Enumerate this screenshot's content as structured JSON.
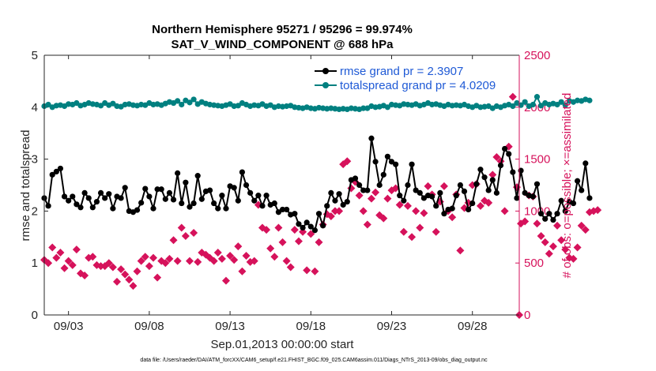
{
  "chart_data": {
    "type": "line",
    "title": "Northern Hemisphere 95271 / 95296 = 99.974%",
    "subtitle": "SAT_V_WIND_COMPONENT @ 688 hPa",
    "xlabel": "Sep.01,2013 00:00:00 start",
    "ylabel": "rmse and totalspread",
    "y2label": "# of obs: o=possible; ×=assimilated",
    "xlim": [
      1.5,
      30.9
    ],
    "ylim": [
      0,
      5
    ],
    "y2lim": [
      0,
      2500
    ],
    "x_ticks": [
      3,
      8,
      13,
      18,
      23,
      28
    ],
    "x_tick_labels": [
      "09/03",
      "09/08",
      "09/13",
      "09/18",
      "09/23",
      "09/28"
    ],
    "y_ticks": [
      0,
      1,
      2,
      3,
      4,
      5
    ],
    "y2_ticks": [
      0,
      500,
      1000,
      1500,
      2000,
      2500
    ],
    "footer": "data file: /Users/raeder/DAI/ATM_forcXX/CAM6_setup/f.e21.FHIST_BGC.f09_025.CAM6assim.011/Diags_NTrS_2013-09/obs_diag_output.nc",
    "colors": {
      "rmse": "#000000",
      "spread": "#008080",
      "obs": "#d6125b",
      "legend_text": "#1f5ad6"
    },
    "x_start": 1.5,
    "x_step": 0.25,
    "series": [
      {
        "name": "rmse grand pr = 2.3907",
        "axis": "left",
        "values": [
          2.25,
          2.1,
          2.7,
          2.76,
          2.82,
          2.28,
          2.2,
          2.28,
          2.13,
          2.07,
          2.35,
          2.25,
          2.07,
          2.18,
          2.35,
          2.25,
          2.33,
          2.05,
          2.28,
          2.25,
          2.45,
          2.0,
          1.98,
          2.02,
          2.16,
          2.43,
          2.28,
          2.05,
          2.42,
          2.42,
          2.23,
          2.35,
          2.22,
          2.73,
          2.15,
          2.55,
          2.08,
          2.15,
          2.68,
          2.23,
          2.38,
          2.4,
          2.15,
          2.05,
          2.3,
          2.05,
          2.48,
          2.45,
          2.2,
          2.75,
          2.5,
          2.35,
          2.2,
          2.3,
          2.1,
          2.3,
          2.12,
          2.15,
          1.98,
          2.03,
          2.03,
          1.93,
          1.95,
          1.75,
          1.68,
          1.78,
          1.7,
          1.63,
          1.95,
          1.72,
          2.1,
          2.35,
          2.2,
          2.33,
          2.12,
          2.18,
          2.6,
          2.63,
          2.5,
          2.4,
          2.4,
          3.4,
          2.95,
          2.5,
          2.7,
          3.05,
          2.95,
          2.9,
          2.3,
          2.2,
          2.5,
          2.9,
          2.4,
          2.35,
          2.25,
          2.3,
          2.28,
          2.1,
          2.35,
          1.95,
          2.03,
          2.05,
          2.3,
          2.5,
          2.38,
          2.03,
          2.15,
          2.52,
          2.8,
          2.65,
          2.4,
          2.6,
          2.35,
          2.88,
          3.2,
          3.1,
          2.75,
          2.25,
          2.78,
          2.35,
          2.3,
          2.28,
          2.52,
          1.95,
          1.85,
          1.95,
          1.83,
          1.95,
          2.2,
          2.0,
          2.18,
          2.15,
          2.58,
          2.4,
          2.92,
          2.25
        ]
      },
      {
        "name": "totalspread grand pr = 4.0209",
        "axis": "left",
        "values": [
          4.02,
          4.05,
          4.0,
          4.03,
          4.04,
          4.02,
          4.06,
          4.05,
          4.08,
          4.03,
          4.05,
          4.08,
          4.06,
          4.05,
          4.03,
          4.08,
          4.04,
          4.07,
          4.02,
          4.01,
          4.05,
          4.06,
          4.04,
          4.03,
          4.05,
          4.04,
          4.08,
          4.05,
          4.06,
          4.04,
          4.07,
          4.1,
          4.08,
          4.12,
          4.05,
          4.13,
          4.09,
          4.15,
          4.06,
          4.1,
          4.07,
          4.05,
          4.04,
          4.03,
          4.02,
          4.04,
          4.06,
          4.02,
          4.03,
          4.08,
          4.05,
          4.02,
          4.04,
          4.03,
          4.06,
          4.02,
          4.04,
          4.0,
          4.02,
          4.01,
          4.02,
          4.03,
          4.0,
          3.99,
          3.98,
          4.0,
          3.98,
          3.97,
          3.99,
          3.98,
          3.97,
          3.98,
          3.97,
          3.96,
          3.97,
          3.96,
          3.98,
          3.97,
          3.96,
          3.98,
          3.98,
          4.02,
          4.0,
          4.01,
          4.03,
          4.0,
          4.05,
          4.04,
          4.03,
          4.06,
          4.05,
          4.04,
          4.06,
          4.03,
          4.05,
          4.08,
          4.05,
          4.06,
          4.04,
          4.02,
          4.05,
          4.03,
          4.04,
          4.03,
          4.05,
          4.02,
          4.0,
          4.03,
          4.0,
          4.01,
          4.02,
          3.98,
          4.02,
          4.0,
          4.03,
          4.05,
          4.02,
          4.08,
          4.04,
          4.1,
          4.02,
          4.05,
          4.2,
          4.03,
          4.08,
          4.05,
          4.07,
          4.05,
          4.1,
          4.04,
          4.12,
          4.1,
          4.13,
          4.12,
          4.15,
          4.13
        ]
      },
      {
        "name": "# of obs assimilated",
        "axis": "right",
        "values": [
          530,
          500,
          650,
          550,
          600,
          450,
          520,
          480,
          630,
          400,
          380,
          550,
          560,
          480,
          470,
          470,
          500,
          460,
          320,
          440,
          390,
          340,
          280,
          420,
          520,
          560,
          470,
          550,
          360,
          520,
          500,
          540,
          720,
          520,
          840,
          760,
          520,
          790,
          510,
          600,
          580,
          550,
          520,
          600,
          540,
          330,
          570,
          530,
          660,
          420,
          570,
          510,
          520,
          1060,
          840,
          820,
          640,
          560,
          840,
          700,
          520,
          460,
          820,
          710,
          800,
          430,
          780,
          420,
          700,
          870,
          970,
          950,
          1000,
          1000,
          1450,
          1480,
          1220,
          1280,
          1150,
          1000,
          870,
          1120,
          1180,
          960,
          930,
          1120,
          1200,
          1220,
          1060,
          800,
          1050,
          750,
          1000,
          840,
          980,
          1240,
          1160,
          800,
          1090,
          1240,
          1000,
          940,
          1160,
          620,
          1030,
          1080,
          1250,
          1260,
          1050,
          1100,
          1080,
          1350,
          1520,
          1480,
          1000,
          1620,
          2100,
          1230,
          880,
          900,
          1150,
          1140,
          880,
          760,
          700,
          590,
          660,
          860,
          720,
          630,
          550,
          540,
          650,
          860,
          820,
          990,
          1000,
          1010
        ]
      },
      {
        "name": "# of obs possible",
        "axis": "right",
        "values": [
          535,
          505,
          655,
          555,
          605,
          455,
          525,
          485,
          635,
          405,
          385,
          555,
          565,
          485,
          475,
          475,
          505,
          465,
          325,
          445,
          395,
          345,
          285,
          425,
          525,
          565,
          475,
          555,
          365,
          525,
          505,
          545,
          725,
          525,
          845,
          765,
          525,
          795,
          515,
          605,
          585,
          555,
          525,
          605,
          545,
          335,
          575,
          535,
          665,
          425,
          575,
          515,
          525,
          1065,
          845,
          825,
          645,
          565,
          845,
          705,
          525,
          465,
          825,
          715,
          805,
          435,
          785,
          425,
          705,
          875,
          975,
          955,
          1005,
          1005,
          1455,
          1485,
          1225,
          1285,
          1155,
          1005,
          875,
          1125,
          1185,
          965,
          935,
          1125,
          1205,
          1225,
          1065,
          805,
          1055,
          755,
          1005,
          845,
          985,
          1245,
          1165,
          805,
          1095,
          1245,
          1005,
          945,
          1165,
          625,
          1035,
          1085,
          1255,
          1265,
          1055,
          1105,
          1085,
          1355,
          1525,
          1485,
          1005,
          1625,
          2105,
          1235,
          885,
          905,
          1155,
          1145,
          885,
          765,
          705,
          595,
          665,
          865,
          725,
          635,
          555,
          545,
          655,
          865,
          825,
          995,
          1005,
          1015
        ]
      }
    ],
    "legend": [
      {
        "label": "rmse grand pr = 2.3907",
        "color": "#000000"
      },
      {
        "label": "totalspread grand pr = 4.0209",
        "color": "#008080"
      }
    ],
    "extra_marker": {
      "x": 30.9,
      "y2": 0
    }
  }
}
